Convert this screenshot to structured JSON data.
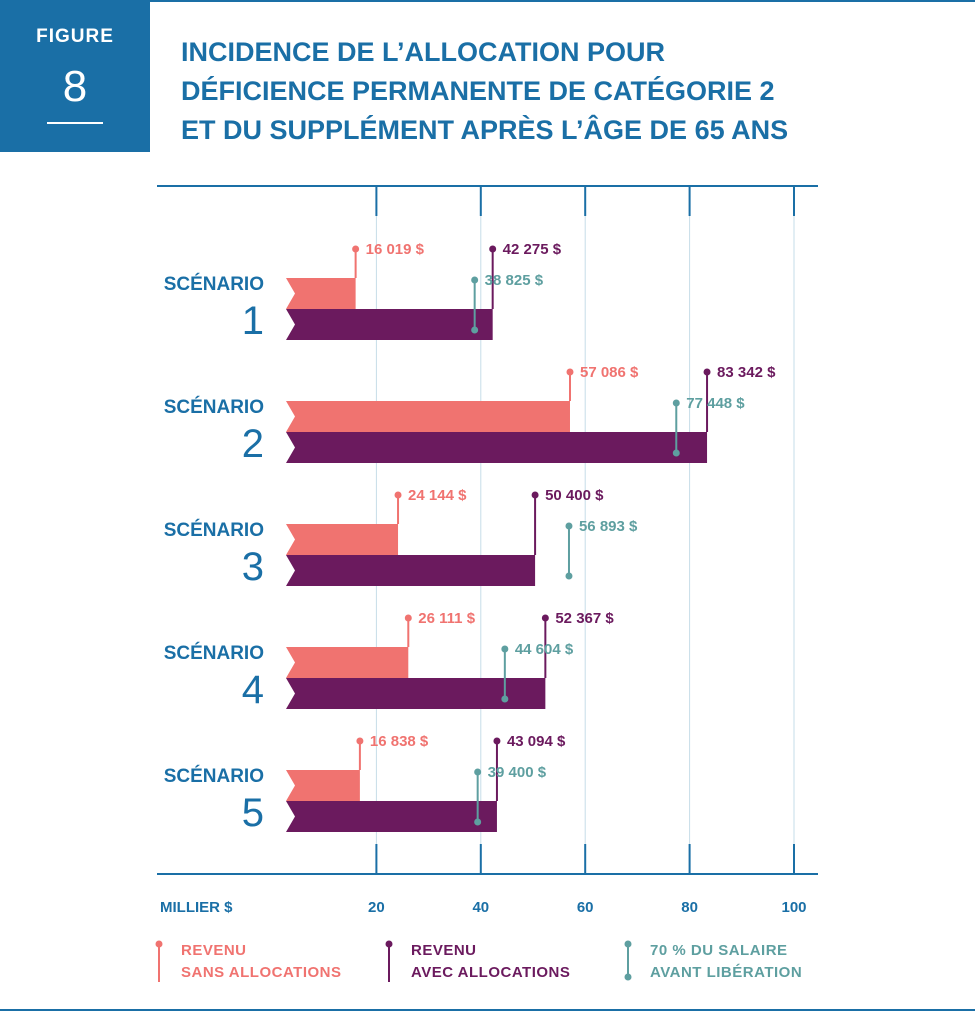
{
  "figure": {
    "label": "FIGURE",
    "number": "8"
  },
  "title_lines": [
    "INCIDENCE DE L’ALLOCATION POUR",
    "DÉFICIENCE PERMANENTE DE CATÉGORIE 2",
    "ET DU SUPPLÉMENT APRÈS L’ÂGE DE 65 ANS"
  ],
  "colors": {
    "accent": "#1a6fa6",
    "sans": "#f07370",
    "avec": "#6b1a5e",
    "salaire": "#5e9fa0"
  },
  "chart_data": {
    "type": "bar",
    "orientation": "horizontal",
    "x_unit_label": "MILLIER $",
    "xlim": [
      0,
      100
    ],
    "x_ticks": [
      20,
      40,
      60,
      80,
      100
    ],
    "grid": true,
    "legend_position": "bottom",
    "categories": [
      {
        "word": "SCÉNARIO",
        "number": "1"
      },
      {
        "word": "SCÉNARIO",
        "number": "2"
      },
      {
        "word": "SCÉNARIO",
        "number": "3"
      },
      {
        "word": "SCÉNARIO",
        "number": "4"
      },
      {
        "word": "SCÉNARIO",
        "number": "5"
      }
    ],
    "series": [
      {
        "key": "sans",
        "legend": [
          "REVENU",
          "SANS ALLOCATIONS"
        ],
        "mark": "bar",
        "values": [
          16019,
          57086,
          24144,
          26111,
          16838
        ],
        "labels": [
          "16 019 $",
          "57 086 $",
          "24 144 $",
          "26 111 $",
          "16 838 $"
        ]
      },
      {
        "key": "avec",
        "legend": [
          "REVENU",
          "AVEC ALLOCATIONS"
        ],
        "mark": "bar",
        "values": [
          42275,
          83342,
          50400,
          52367,
          43094
        ],
        "labels": [
          "42 275 $",
          "83 342 $",
          "50 400 $",
          "52 367 $",
          "43 094 $"
        ]
      },
      {
        "key": "salaire",
        "legend": [
          "70 % DU SALAIRE",
          "AVANT LIBÉRATION"
        ],
        "mark": "pin",
        "values": [
          38825,
          77448,
          56893,
          44604,
          39400
        ],
        "labels": [
          "38 825 $",
          "77 448 $",
          "56 893 $",
          "44 604 $",
          "39 400 $"
        ]
      }
    ]
  }
}
